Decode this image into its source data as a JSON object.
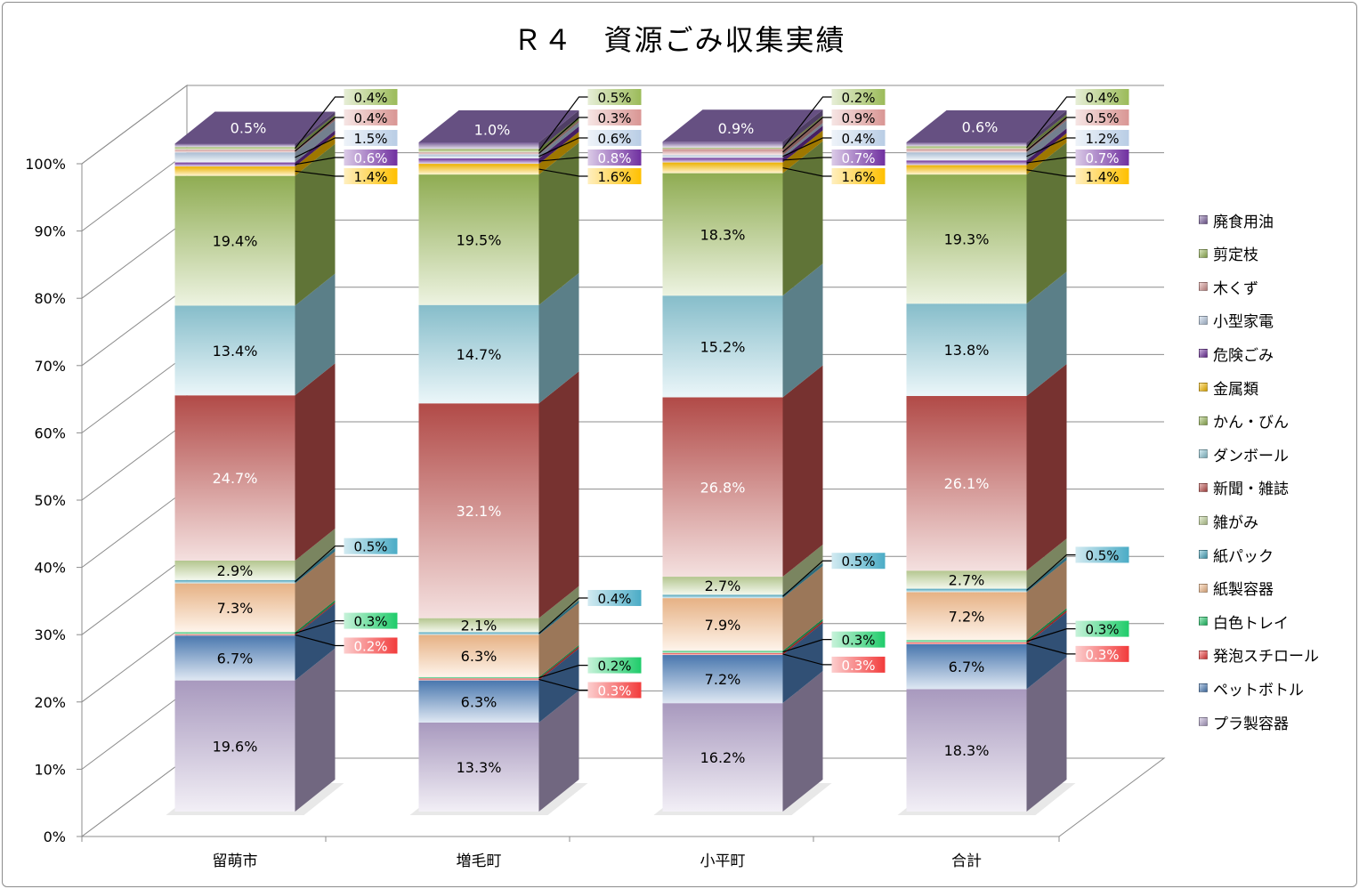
{
  "chart_data": {
    "type": "bar",
    "stacked": true,
    "percent_stacked": true,
    "three_d": true,
    "title": "Ｒ４　資源ごみ収集実績",
    "categories": [
      "留萌市",
      "増毛町",
      "小平町",
      "合計"
    ],
    "y_ticks": [
      "0%",
      "10%",
      "20%",
      "30%",
      "40%",
      "50%",
      "60%",
      "70%",
      "80%",
      "90%",
      "100%"
    ],
    "ylim": [
      0,
      100
    ],
    "legend_position": "right",
    "series": [
      {
        "name": "プラ製容器",
        "color": "#b7a6cf",
        "values": [
          19.6,
          13.3,
          16.2,
          18.3
        ],
        "labels": [
          "19.6%",
          "13.3%",
          "16.2%",
          "18.3%"
        ]
      },
      {
        "name": "ペットボトル",
        "color": "#4f81bd",
        "values": [
          6.7,
          6.3,
          7.2,
          6.7
        ],
        "labels": [
          "6.7%",
          "6.3%",
          "7.2%",
          "6.7%"
        ]
      },
      {
        "name": "発泡スチロール",
        "color": "#f23b3b",
        "values": [
          0.2,
          0.3,
          0.3,
          0.3
        ],
        "labels": [
          "0.2%",
          "0.3%",
          "0.3%",
          "0.3%"
        ]
      },
      {
        "name": "白色トレイ",
        "color": "#1fcc6a",
        "values": [
          0.3,
          0.2,
          0.3,
          0.3
        ],
        "labels": [
          "0.3%",
          "0.2%",
          "0.3%",
          "0.3%"
        ]
      },
      {
        "name": "紙製容器",
        "color": "#fac08f",
        "values": [
          7.3,
          6.3,
          7.9,
          7.2
        ],
        "labels": [
          "7.3%",
          "6.3%",
          "7.9%",
          "7.2%"
        ]
      },
      {
        "name": "紙パック",
        "color": "#4bacc6",
        "values": [
          0.5,
          0.4,
          0.5,
          0.5
        ],
        "labels": [
          "0.5%",
          "0.4%",
          "0.5%",
          "0.5%"
        ]
      },
      {
        "name": "雑がみ",
        "color": "#c4d79b",
        "values": [
          2.9,
          2.1,
          2.7,
          2.7
        ],
        "labels": [
          "2.9%",
          "2.1%",
          "2.7%",
          "2.7%"
        ]
      },
      {
        "name": "新聞・雑誌",
        "color": "#c0504d",
        "values": [
          24.7,
          32.1,
          26.8,
          26.1
        ],
        "labels": [
          "24.7%",
          "32.1%",
          "26.8%",
          "26.1%"
        ]
      },
      {
        "name": "ダンボール",
        "color": "#92cddc",
        "values": [
          13.4,
          14.7,
          15.2,
          13.8
        ],
        "labels": [
          "13.4%",
          "14.7%",
          "15.2%",
          "13.8%"
        ]
      },
      {
        "name": "かん・びん",
        "color": "#9bbb59",
        "values": [
          19.4,
          19.5,
          18.3,
          19.3
        ],
        "labels": [
          "19.4%",
          "19.5%",
          "18.3%",
          "19.3%"
        ]
      },
      {
        "name": "金属類",
        "color": "#ffc000",
        "values": [
          1.4,
          1.6,
          1.6,
          1.4
        ],
        "labels": [
          "1.4%",
          "1.6%",
          "1.6%",
          "1.4%"
        ]
      },
      {
        "name": "危険ごみ",
        "color": "#7030a0",
        "values": [
          0.6,
          0.8,
          0.7,
          0.7
        ],
        "labels": [
          "0.6%",
          "0.8%",
          "0.7%",
          "0.7%"
        ]
      },
      {
        "name": "小型家電",
        "color": "#b9cde5",
        "values": [
          1.5,
          0.6,
          0.4,
          1.2
        ],
        "labels": [
          "1.5%",
          "0.6%",
          "0.4%",
          "1.2%"
        ]
      },
      {
        "name": "木くず",
        "color": "#d99694",
        "values": [
          0.4,
          0.3,
          0.9,
          0.5
        ],
        "labels": [
          "0.4%",
          "0.3%",
          "0.9%",
          "0.5%"
        ]
      },
      {
        "name": "剪定枝",
        "color": "#9bbb59",
        "values": [
          0.4,
          0.5,
          0.2,
          0.4
        ],
        "labels": [
          "0.4%",
          "0.5%",
          "0.2%",
          "0.4%"
        ]
      },
      {
        "name": "廃食用油",
        "color": "#8064a2",
        "values": [
          0.5,
          1.0,
          0.9,
          0.6
        ],
        "labels": [
          "0.5%",
          "1.0%",
          "0.9%",
          "0.6%"
        ]
      }
    ],
    "legend_order": [
      "廃食用油",
      "剪定枝",
      "木くず",
      "小型家電",
      "危険ごみ",
      "金属類",
      "かん・びん",
      "ダンボール",
      "新聞・雑誌",
      "雑がみ",
      "紙パック",
      "紙製容器",
      "白色トレイ",
      "発泡スチロール",
      "ペットボトル",
      "プラ製容器"
    ]
  }
}
